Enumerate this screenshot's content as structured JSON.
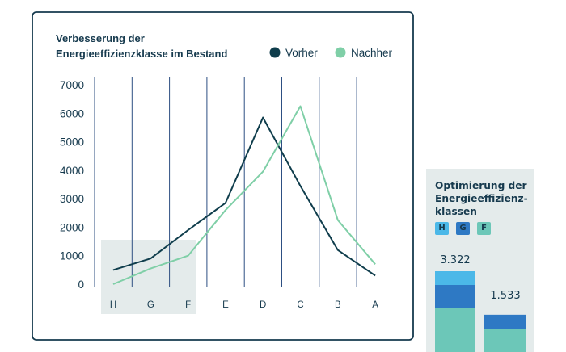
{
  "chart_data": [
    {
      "type": "line",
      "title": "Verbesserung der\nEnergieeffizienzklasse im Bestand",
      "categories": [
        "H",
        "G",
        "F",
        "E",
        "D",
        "C",
        "B",
        "A"
      ],
      "ylim": [
        0,
        7000
      ],
      "yticks": [
        "7000",
        "6000",
        "5000",
        "4000",
        "3000",
        "2000",
        "1000",
        "0"
      ],
      "highlight_categories": [
        "H",
        "G",
        "F"
      ],
      "grid": "vertical",
      "legend_position": "top-right",
      "series": [
        {
          "name": "Vorher",
          "color": "#0f3d4c",
          "values": [
            500,
            900,
            1900,
            2850,
            5850,
            3450,
            1200,
            300
          ]
        },
        {
          "name": "Nachher",
          "color": "#7fcfa7",
          "values": [
            0,
            550,
            1000,
            2600,
            3950,
            6250,
            2250,
            700
          ]
        }
      ]
    },
    {
      "type": "bar",
      "title": "Optimierung der Energieeffizienz-klassen",
      "legend": [
        {
          "label": "H",
          "color": "#4bb8e8"
        },
        {
          "label": "G",
          "color": "#2e79c4"
        },
        {
          "label": "F",
          "color": "#6cc7b8"
        }
      ],
      "bars": [
        {
          "label": "3.322",
          "total": 3322,
          "stack": [
            {
              "class": "H",
              "share": 0.17
            },
            {
              "class": "G",
              "share": 0.28
            },
            {
              "class": "F",
              "share": 0.55
            }
          ]
        },
        {
          "label": "1.533",
          "total": 1533,
          "stack": [
            {
              "class": "G",
              "share": 0.38
            },
            {
              "class": "F",
              "share": 0.62
            }
          ]
        }
      ]
    }
  ]
}
